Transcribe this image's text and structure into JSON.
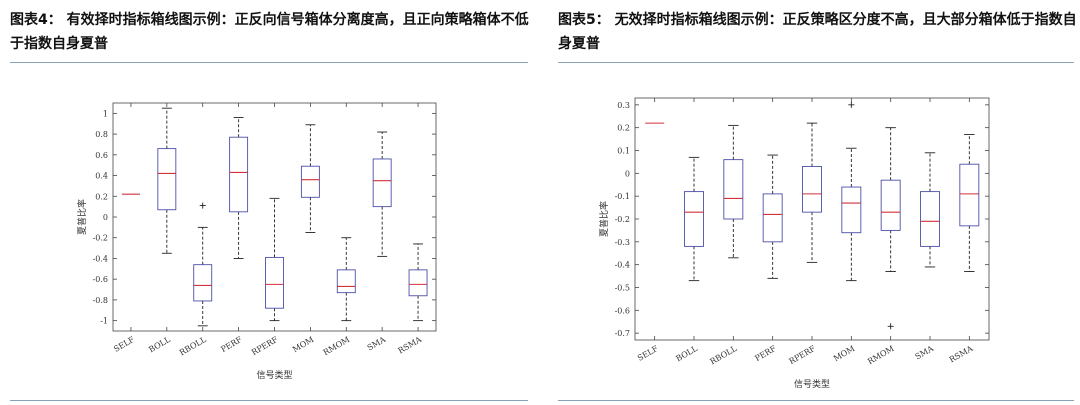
{
  "figures": [
    {
      "caption": "图表4： 有效择时指标箱线图示例：正反向信号箱体分离度高，且正向策略箱体不低于指数自身夏普"
    },
    {
      "caption": "图表5： 无效择时指标箱线图示例：正反策略区分度不高，且大部分箱体低于指数自身夏普"
    }
  ],
  "chart_data": [
    {
      "type": "box",
      "xlabel": "信号类型",
      "ylabel": "夏普比率",
      "ylim": [
        -1.1,
        1.1
      ],
      "yticks": [
        1,
        0.8,
        0.6,
        0.4,
        0.2,
        0,
        -0.2,
        -0.4,
        -0.6,
        -0.8,
        -1
      ],
      "categories": [
        "SELF",
        "BOLL",
        "RBOLL",
        "PERF",
        "RPERF",
        "MOM",
        "RMOM",
        "SMA",
        "RSMA"
      ],
      "boxes": [
        {
          "name": "SELF",
          "line": 0.22
        },
        {
          "name": "BOLL",
          "min": -0.35,
          "q1": 0.07,
          "median": 0.42,
          "q3": 0.66,
          "max": 1.05
        },
        {
          "name": "RBOLL",
          "min": -1.05,
          "q1": -0.81,
          "median": -0.66,
          "q3": -0.46,
          "max": -0.1,
          "outliers": [
            0.11
          ]
        },
        {
          "name": "PERF",
          "min": -0.4,
          "q1": 0.05,
          "median": 0.43,
          "q3": 0.77,
          "max": 0.96
        },
        {
          "name": "RPERF",
          "min": -1.0,
          "q1": -0.88,
          "median": -0.65,
          "q3": -0.39,
          "max": 0.18
        },
        {
          "name": "MOM",
          "min": -0.15,
          "q1": 0.19,
          "median": 0.36,
          "q3": 0.49,
          "max": 0.89
        },
        {
          "name": "RMOM",
          "min": -1.0,
          "q1": -0.73,
          "median": -0.67,
          "q3": -0.51,
          "max": -0.2
        },
        {
          "name": "SMA",
          "min": -0.38,
          "q1": 0.1,
          "median": 0.35,
          "q3": 0.56,
          "max": 0.82
        },
        {
          "name": "RSMA",
          "min": -1.0,
          "q1": -0.76,
          "median": -0.65,
          "q3": -0.51,
          "max": -0.26
        }
      ]
    },
    {
      "type": "box",
      "xlabel": "信号类型",
      "ylabel": "夏普比率",
      "ylim": [
        -0.73,
        0.33
      ],
      "yticks": [
        0.3,
        0.2,
        0.1,
        0,
        -0.1,
        -0.2,
        -0.3,
        -0.4,
        -0.5,
        -0.6,
        -0.7
      ],
      "categories": [
        "SELF",
        "BOLL",
        "RBOLL",
        "PERF",
        "RPERF",
        "MOM",
        "RMOM",
        "SMA",
        "RSMA"
      ],
      "boxes": [
        {
          "name": "SELF",
          "line": 0.22
        },
        {
          "name": "BOLL",
          "min": -0.47,
          "q1": -0.32,
          "median": -0.17,
          "q3": -0.08,
          "max": 0.07
        },
        {
          "name": "RBOLL",
          "min": -0.37,
          "q1": -0.2,
          "median": -0.11,
          "q3": 0.06,
          "max": 0.21
        },
        {
          "name": "PERF",
          "min": -0.46,
          "q1": -0.3,
          "median": -0.18,
          "q3": -0.09,
          "max": 0.08
        },
        {
          "name": "RPERF",
          "min": -0.39,
          "q1": -0.17,
          "median": -0.09,
          "q3": 0.03,
          "max": 0.22
        },
        {
          "name": "MOM",
          "min": -0.47,
          "q1": -0.26,
          "median": -0.13,
          "q3": -0.06,
          "max": 0.11,
          "outliers": [
            0.3
          ]
        },
        {
          "name": "RMOM",
          "min": -0.43,
          "q1": -0.25,
          "median": -0.17,
          "q3": -0.03,
          "max": 0.2,
          "outliers": [
            -0.67
          ]
        },
        {
          "name": "SMA",
          "min": -0.41,
          "q1": -0.32,
          "median": -0.21,
          "q3": -0.08,
          "max": 0.09
        },
        {
          "name": "RSMA",
          "min": -0.43,
          "q1": -0.23,
          "median": -0.09,
          "q3": 0.04,
          "max": 0.17
        }
      ]
    }
  ]
}
